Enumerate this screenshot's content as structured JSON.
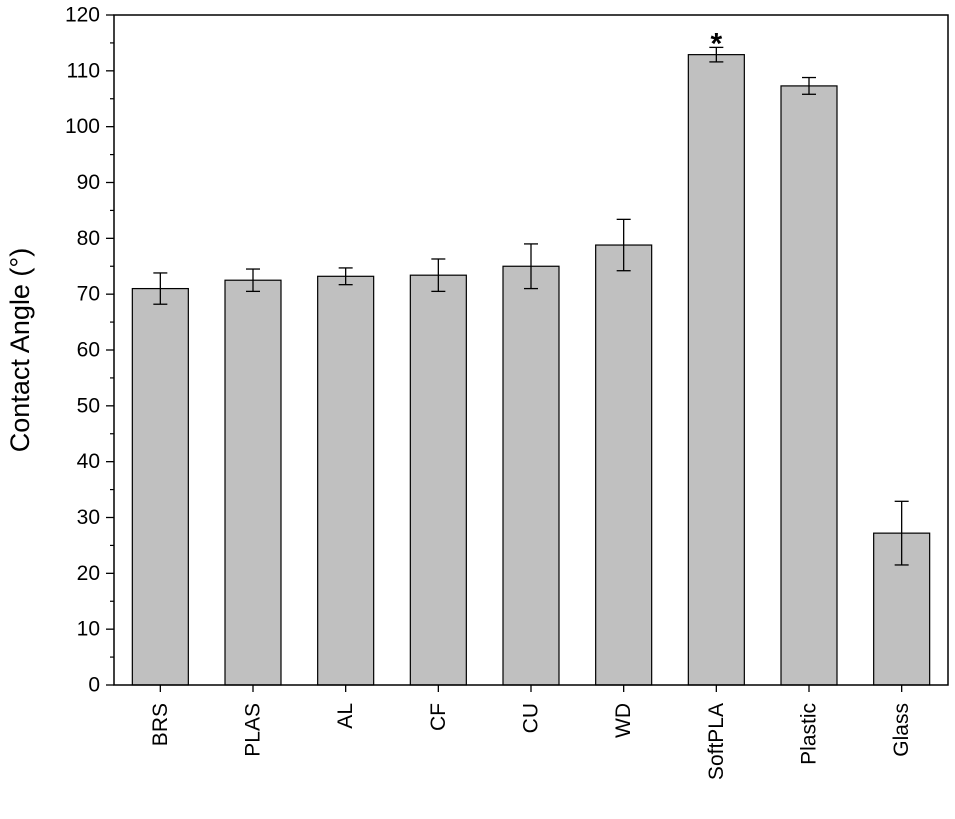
{
  "chart_data": {
    "type": "bar",
    "title": "",
    "xlabel": "",
    "ylabel": "Contact Angle (°)",
    "ylim": [
      0,
      120
    ],
    "yticks": [
      "0",
      "10",
      "20",
      "30",
      "40",
      "50",
      "60",
      "70",
      "80",
      "90",
      "100",
      "110",
      "120"
    ],
    "categories": [
      "BRS",
      "PLAS",
      "AL",
      "CF",
      "CU",
      "WD",
      "SoftPLA",
      "Plastic",
      "Glass"
    ],
    "values": [
      71.0,
      72.5,
      73.2,
      73.4,
      75.0,
      78.8,
      112.9,
      107.3,
      27.2
    ],
    "errors": [
      2.8,
      2.0,
      1.5,
      2.9,
      4.0,
      4.6,
      1.3,
      1.5,
      5.7
    ],
    "annotations": [
      {
        "category": "SoftPLA",
        "text": "*"
      }
    ],
    "bar_color": "#c0c0c0",
    "grid": false
  }
}
